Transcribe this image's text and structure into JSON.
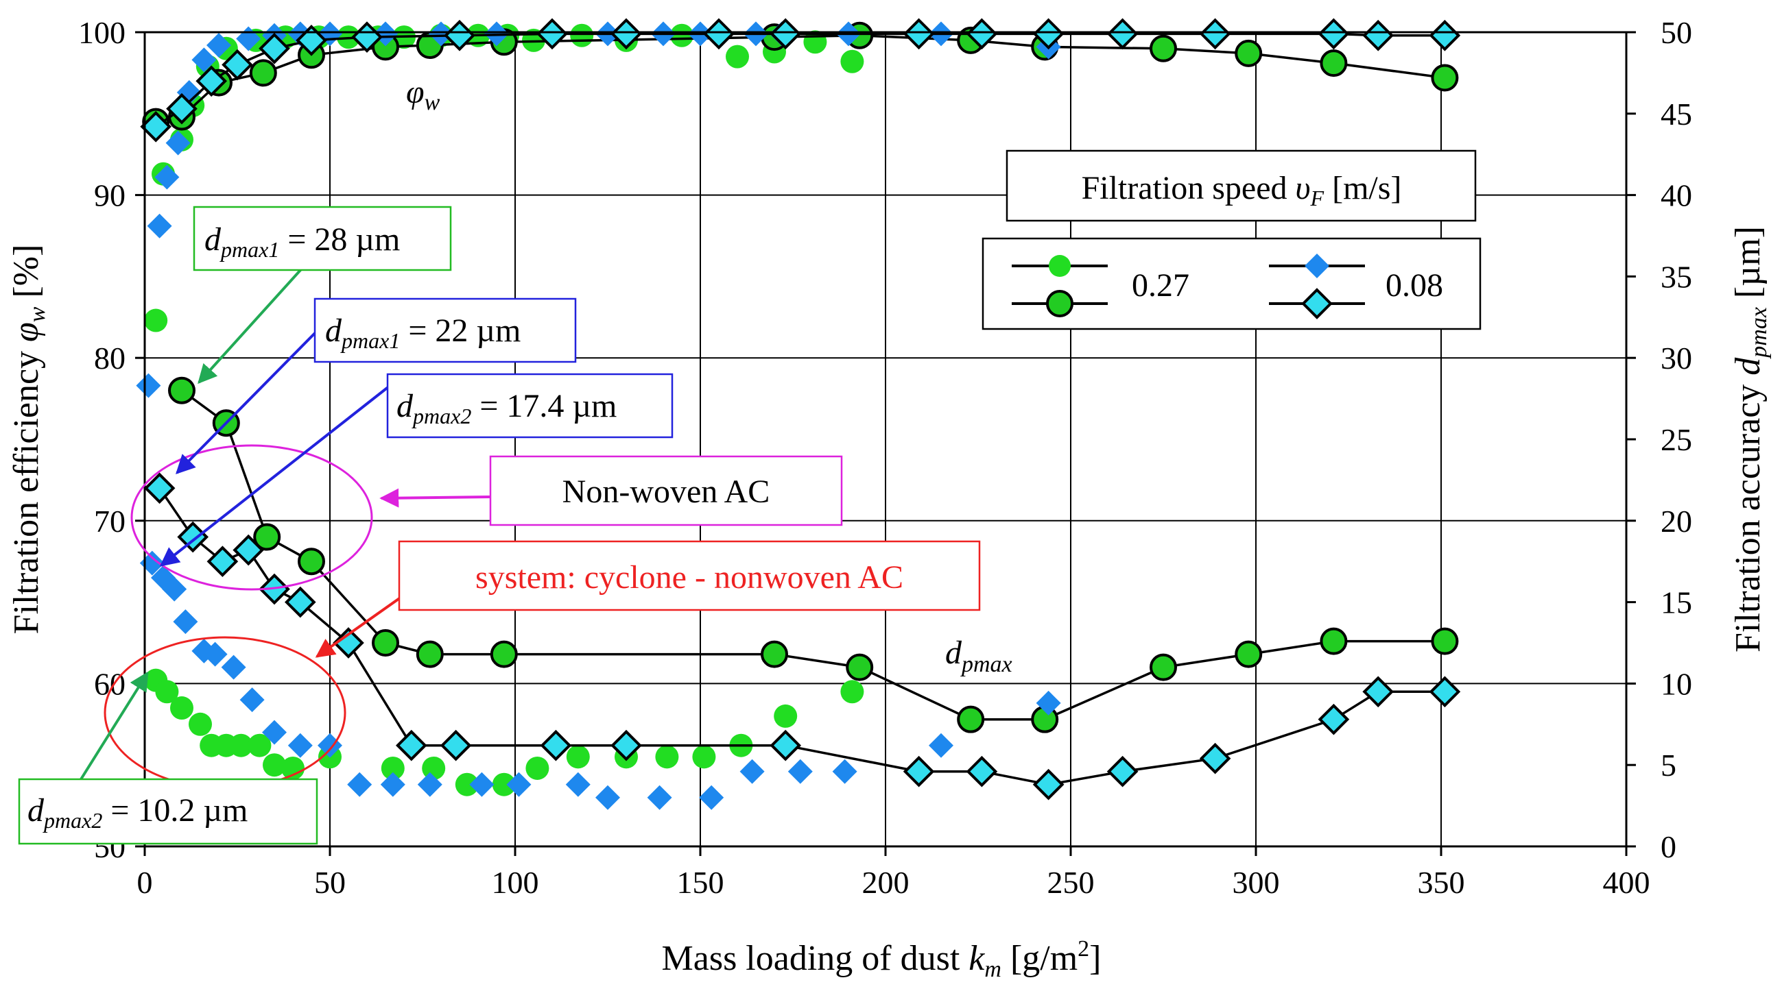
{
  "chart_data": {
    "type": "scatter",
    "title": "",
    "xlabel": {
      "main": "Mass loading of dust ",
      "sym": "k",
      "sub": "m",
      "units": " [g/m",
      "sup": "2",
      "close": "]"
    },
    "ylabel_left": {
      "main": "Filtration efficiency ",
      "sym": "φ",
      "sub": "w",
      "units": " [%]"
    },
    "ylabel_right": {
      "main": "Filtration accuracy ",
      "sym": "d",
      "sub": "pmax",
      "units": " [µm]"
    },
    "xlim": [
      0,
      400
    ],
    "ylim_left": [
      50,
      100
    ],
    "ylim_right": [
      0,
      50
    ],
    "grid": true,
    "x_ticks": [
      "0",
      "50",
      "100",
      "150",
      "200",
      "250",
      "300",
      "350",
      "400"
    ],
    "y_left_ticks": [
      "50",
      "60",
      "70",
      "80",
      "90",
      "100"
    ],
    "y_right_ticks": [
      "0",
      "5",
      "10",
      "15",
      "20",
      "25",
      "30",
      "35",
      "40",
      "45",
      "50"
    ],
    "legend": {
      "title_main": "Filtration speed ",
      "title_sym": "υ",
      "title_sub": "F",
      "title_units": " [m/s]",
      "entries": [
        {
          "label": "0.27"
        },
        {
          "label": "0.08"
        }
      ]
    },
    "series": [
      {
        "name": "efficiency φw, 0.27 m/s (no cyclone)",
        "marker": "circle",
        "fill": "#22dd22",
        "stroke": "none",
        "line": false,
        "axis": "left",
        "x": [
          3,
          5,
          10,
          13,
          17,
          22,
          30,
          38,
          47,
          55,
          63,
          70,
          80,
          90,
          98,
          105,
          118,
          130,
          145,
          160,
          170,
          181,
          191
        ],
        "y": [
          82.3,
          91.3,
          93.4,
          95.5,
          97.9,
          99.0,
          99.5,
          99.7,
          99.7,
          99.7,
          99.7,
          99.7,
          99.8,
          99.8,
          99.8,
          99.5,
          99.8,
          99.5,
          99.8,
          98.5,
          98.8,
          99.4,
          98.2
        ]
      },
      {
        "name": "efficiency φw, 0.27 m/s (system)",
        "marker": "circle",
        "fill": "#22cc22",
        "stroke": "#000",
        "line": true,
        "axis": "left",
        "x": [
          3,
          10,
          20,
          32,
          45,
          65,
          77,
          97,
          170,
          193,
          223,
          243,
          275,
          298,
          321,
          351
        ],
        "y": [
          94.5,
          94.8,
          96.9,
          97.5,
          98.6,
          99.1,
          99.2,
          99.4,
          99.7,
          99.8,
          99.5,
          99.1,
          99.0,
          98.7,
          98.1,
          97.2
        ]
      },
      {
        "name": "efficiency φw, 0.08 m/s (no cyclone)",
        "marker": "diamond",
        "fill": "#1e88ee",
        "stroke": "none",
        "line": false,
        "axis": "left",
        "x": [
          1,
          4,
          6,
          9,
          12,
          16,
          20,
          28,
          35,
          42,
          50,
          65,
          80,
          95,
          110,
          125,
          140,
          150,
          165,
          172,
          190,
          215,
          244
        ],
        "y": [
          78.3,
          88.1,
          91.1,
          93.2,
          96.3,
          98.3,
          99.2,
          99.6,
          99.8,
          99.9,
          99.9,
          99.9,
          99.9,
          99.9,
          99.9,
          99.9,
          99.9,
          99.9,
          99.9,
          99.9,
          99.9,
          99.9,
          99.1
        ]
      },
      {
        "name": "efficiency φw, 0.08 m/s (system)",
        "marker": "diamond",
        "fill": "#33ddee",
        "stroke": "#000",
        "line": true,
        "axis": "left",
        "x": [
          3,
          10,
          18,
          25,
          35,
          45,
          60,
          85,
          110,
          130,
          155,
          173,
          209,
          226,
          244,
          264,
          289,
          321,
          333,
          351
        ],
        "y": [
          94.2,
          95.3,
          97.0,
          98.0,
          99.0,
          99.5,
          99.7,
          99.8,
          99.9,
          99.9,
          99.9,
          99.9,
          99.9,
          99.9,
          99.9,
          99.9,
          99.9,
          99.9,
          99.8,
          99.8
        ]
      },
      {
        "name": "accuracy dpmax, 0.27 m/s (no cyclone)",
        "marker": "circle",
        "fill": "#22dd22",
        "stroke": "none",
        "line": false,
        "axis": "right",
        "x": [
          3,
          6,
          10,
          15,
          18,
          22,
          26,
          31,
          35,
          40,
          50,
          67,
          78,
          87,
          97,
          106,
          117,
          130,
          141,
          151,
          161,
          173,
          191
        ],
        "y": [
          10.2,
          9.5,
          8.5,
          7.5,
          6.2,
          6.2,
          6.2,
          6.2,
          5.0,
          4.8,
          5.5,
          4.8,
          4.8,
          3.8,
          3.8,
          4.8,
          5.5,
          5.5,
          5.5,
          5.5,
          6.2,
          8.0,
          9.5
        ]
      },
      {
        "name": "accuracy dpmax, 0.27 m/s (system)",
        "marker": "circle",
        "fill": "#22cc22",
        "stroke": "#000",
        "line": true,
        "axis": "right",
        "x": [
          10,
          22,
          33,
          45,
          65,
          77,
          97,
          170,
          193,
          223,
          243,
          275,
          298,
          321,
          351
        ],
        "y": [
          28.0,
          26.0,
          19.0,
          17.5,
          12.5,
          11.8,
          11.8,
          11.8,
          11.0,
          7.8,
          7.8,
          11.0,
          11.8,
          12.6,
          12.6
        ]
      },
      {
        "name": "accuracy dpmax, 0.08 m/s (no cyclone)",
        "marker": "diamond",
        "fill": "#1e88ee",
        "stroke": "none",
        "line": false,
        "axis": "right",
        "x": [
          2,
          5,
          8,
          11,
          16,
          19,
          24,
          29,
          35,
          42,
          50,
          58,
          67,
          77,
          91,
          101,
          117,
          125,
          139,
          153,
          164,
          177,
          189,
          215,
          244
        ],
        "y": [
          17.4,
          16.5,
          15.8,
          13.8,
          12.0,
          11.8,
          11.0,
          9.0,
          7.0,
          6.2,
          6.2,
          3.8,
          3.8,
          3.8,
          3.8,
          3.8,
          3.8,
          3.0,
          3.0,
          3.0,
          4.6,
          4.6,
          4.6,
          6.2,
          8.8
        ]
      },
      {
        "name": "accuracy dpmax, 0.08 m/s (system)",
        "marker": "diamond",
        "fill": "#33ddee",
        "stroke": "#000",
        "line": true,
        "axis": "right",
        "x": [
          4,
          13,
          21,
          28,
          35,
          42,
          55,
          72,
          84,
          111,
          130,
          173,
          209,
          226,
          244,
          264,
          289,
          321,
          333,
          351
        ],
        "y": [
          22.0,
          19.0,
          17.5,
          18.2,
          15.8,
          15.0,
          12.5,
          6.2,
          6.2,
          6.2,
          6.2,
          6.2,
          4.6,
          4.6,
          3.8,
          4.6,
          5.4,
          7.8,
          9.5,
          9.5
        ]
      }
    ],
    "annotations": {
      "phi_w_label": {
        "sym": "φ",
        "sub": "w"
      },
      "dpmax_label": {
        "sym": "d",
        "sub": "pmax"
      },
      "callouts": [
        {
          "id": "green1",
          "sym": "d",
          "sub": "pmax1",
          "text": " = 28 µm",
          "color": "#22bb22"
        },
        {
          "id": "blue1",
          "sym": "d",
          "sub": "pmax1",
          "text": " = 22 µm",
          "color": "#2222dd"
        },
        {
          "id": "blue2",
          "sym": "d",
          "sub": "pmax2",
          "text": " = 17.4 µm",
          "color": "#2222dd"
        },
        {
          "id": "nonwoven",
          "text": "Non-woven AC",
          "color": "#dd22dd"
        },
        {
          "id": "system",
          "text": "system: cyclone - nonwoven AC",
          "color": "#ee2222"
        },
        {
          "id": "green2",
          "sym": "d",
          "sub": "pmax2",
          "text": " = 10.2 µm",
          "color": "#22bb22"
        }
      ]
    }
  }
}
